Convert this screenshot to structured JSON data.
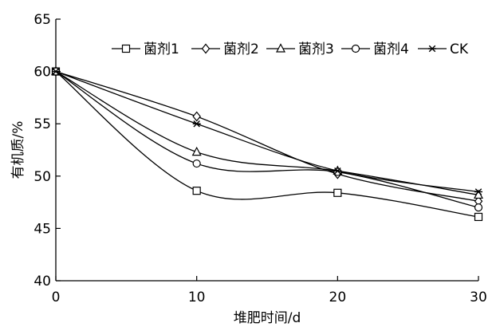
{
  "chart_data": {
    "type": "line",
    "title": "",
    "xlabel": "堆肥时间/d",
    "ylabel": "有机质/%",
    "xlim": [
      0,
      30
    ],
    "ylim": [
      40,
      65
    ],
    "x_ticks": [
      "0",
      "10",
      "20",
      "30"
    ],
    "y_ticks": [
      "40",
      "45",
      "50",
      "55",
      "60",
      "65"
    ],
    "grid": false,
    "legend_position": "top-right",
    "x": [
      0,
      10,
      20,
      30
    ],
    "series": [
      {
        "name": "菌剂1",
        "marker": "square",
        "values": [
          60.0,
          48.6,
          48.4,
          46.1
        ]
      },
      {
        "name": "菌剂2",
        "marker": "diamond",
        "values": [
          60.0,
          55.7,
          50.2,
          47.6
        ]
      },
      {
        "name": "菌剂3",
        "marker": "triangle",
        "values": [
          60.0,
          52.3,
          50.5,
          48.2
        ]
      },
      {
        "name": "菌剂4",
        "marker": "circle",
        "values": [
          60.0,
          51.2,
          50.4,
          47.0
        ]
      },
      {
        "name": "CK",
        "marker": "asterisk",
        "values": [
          60.0,
          55.0,
          50.5,
          48.5
        ]
      }
    ],
    "colors": {
      "line": "#000000",
      "background": "#ffffff"
    }
  }
}
